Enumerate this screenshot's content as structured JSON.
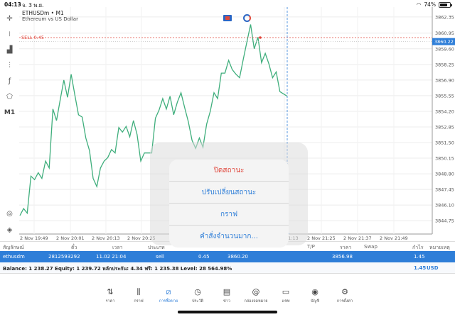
{
  "status_bar": {
    "time": "04:13",
    "date": "จ. 3 พ.ย.",
    "battery": "74%",
    "battery_level": 0.74
  },
  "chart": {
    "symbol": "ETHUSDm • M1",
    "description": "Ethereum vs US Dollar",
    "sell_label": "SELL 0.45",
    "current_price": "3860.22",
    "price_ticks": [
      "3862.35",
      "3860.95",
      "3859.60",
      "3858.25",
      "3856.90",
      "3855.55",
      "3854.20",
      "3852.85",
      "3851.50",
      "3850.15",
      "3848.80",
      "3847.45",
      "3846.10",
      "3844.75"
    ],
    "time_ticks": [
      "2 Nov 19:49",
      "2 Nov 20:01",
      "2 Nov 20:13",
      "2 Nov 20:25",
      "2 Nov 21:13",
      "2 Nov 21:25",
      "2 Nov 21:37",
      "2 Nov 21:49"
    ]
  },
  "chart_data": {
    "type": "line",
    "title": "ETHUSDm • M1",
    "subtitle": "Ethereum vs US Dollar",
    "ylim": [
      3843.6,
      3863.2
    ],
    "series": [
      {
        "values": [
          3845.2,
          3845.8,
          3845.4,
          3848.6,
          3848.3,
          3848.9,
          3848.4,
          3849.9,
          3849.3,
          3854.4,
          3853.4,
          3855.2,
          3856.9,
          3855.4,
          3857.4,
          3855.6,
          3853.9,
          3853.7,
          3851.9,
          3850.8,
          3848.4,
          3847.7,
          3849.3,
          3849.9,
          3850.2,
          3850.9,
          3850.6,
          3852.8,
          3852.4,
          3852.9,
          3852.0,
          3853.4,
          3852.2,
          3849.9,
          3850.6,
          3850.6,
          3850.6,
          3853.6,
          3854.3,
          3855.3,
          3854.4,
          3855.5,
          3853.9,
          3855.0,
          3855.8,
          3854.5,
          3853.3,
          3851.7,
          3851.0,
          3851.9,
          3851.1,
          3853.1,
          3854.2,
          3855.8,
          3855.3,
          3857.5,
          3857.5,
          3858.6,
          3857.8,
          3857.4,
          3857.1,
          3858.7,
          3860.2,
          3861.7,
          3859.6,
          3860.6,
          3858.4,
          3859.2,
          3858.3,
          3857.1,
          3857.6,
          3855.9,
          3855.7,
          3855.5
        ]
      }
    ]
  },
  "context_menu": {
    "items": [
      {
        "label": "ปิดสถานะ",
        "danger": true
      },
      {
        "label": "ปรับเปลี่ยนสถานะ",
        "danger": false
      },
      {
        "label": "กราฟ",
        "danger": false
      },
      {
        "label": "คำสั่งจำนวนมาก...",
        "danger": false
      }
    ]
  },
  "trade_table": {
    "headers": {
      "symbol": "สัญลักษณ์",
      "ticket": "ตั๋ว",
      "time": "เวลา",
      "type": "ประเภท",
      "tp": "T/P",
      "price": "ราคา",
      "swap": "Swap",
      "profit": "กำไร",
      "comment": "หมายเหตุ"
    },
    "row": {
      "symbol": "ethusdm",
      "ticket": "2812593292",
      "time": "11.02 21:04",
      "type": "sell",
      "volume": "0.45",
      "open_price": "3860.20",
      "price": "3856.98",
      "profit": "1.45"
    },
    "balance_line": "Balance: 1 238.27 Equity: 1 239.72 หลักประกัน: 4.34 ฟรี: 1 235.38 Level: 28 564.98%",
    "total_profit": "1.45",
    "currency": "USD"
  },
  "nav": {
    "items": [
      {
        "label": "ราคา",
        "icon": "quotes-icon"
      },
      {
        "label": "กราฟ",
        "icon": "chart-icon"
      },
      {
        "label": "การซื้อขาย",
        "icon": "trade-icon"
      },
      {
        "label": "ประวัติ",
        "icon": "history-icon"
      },
      {
        "label": "ข่าว",
        "icon": "news-icon"
      },
      {
        "label": "กล่องจดหมาย",
        "icon": "mailbox-icon"
      },
      {
        "label": "แชท",
        "icon": "chat-icon"
      },
      {
        "label": "บัญชี",
        "icon": "account-icon"
      },
      {
        "label": "การตั้งค่า",
        "icon": "settings-icon"
      }
    ]
  },
  "colors": {
    "accent": "#2e7ed8",
    "sell": "#e0463b",
    "line": "#3fae7c"
  }
}
